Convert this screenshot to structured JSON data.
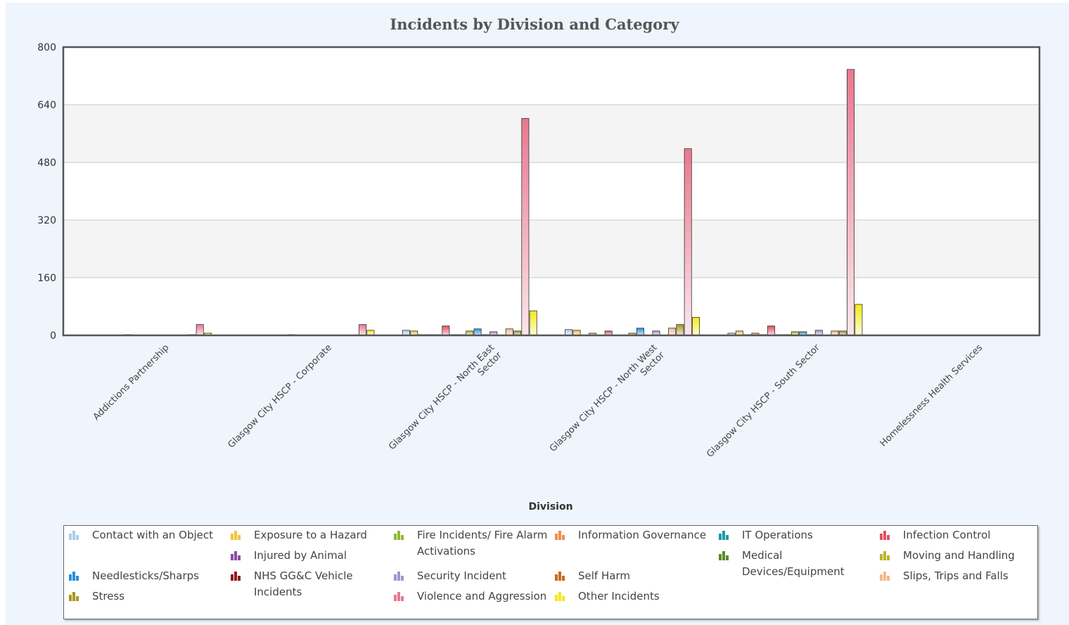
{
  "chart_data": {
    "type": "bar",
    "title": "Incidents by Division and Category",
    "xlabel": "Division",
    "ylabel": "",
    "ylim": [
      0,
      800
    ],
    "yticks": [
      "0",
      "160",
      "320",
      "480",
      "640",
      "800"
    ],
    "grid": true,
    "legend_position": "bottom",
    "categories": [
      "Addictions Partnership",
      "Glasgow City HSCP - Corporate",
      "Glasgow City HSCP - North East Sector",
      "Glasgow City HSCP - North West Sector",
      "Glasgow City HSCP - South Sector",
      "Homelessness Health Services"
    ],
    "series": [
      {
        "name": "Contact with an Object",
        "color": "#aacdee",
        "values": [
          0,
          0,
          14,
          16,
          6,
          0
        ]
      },
      {
        "name": "Exposure to a Hazard",
        "color": "#f2c23a",
        "values": [
          0,
          0,
          12,
          14,
          12,
          0
        ]
      },
      {
        "name": "Fire Incidents/ Fire Alarm Activations",
        "color": "#8db832",
        "values": [
          0,
          0,
          2,
          0,
          2,
          0
        ]
      },
      {
        "name": "Information Governance",
        "color": "#f08c4a",
        "values": [
          0,
          0,
          2,
          6,
          6,
          0
        ]
      },
      {
        "name": "Injured by Animal",
        "color": "#8b4ea2",
        "values": [
          0,
          0,
          2,
          0,
          2,
          0
        ]
      },
      {
        "name": "Infection Control",
        "color": "#e05060",
        "values": [
          0,
          0,
          26,
          12,
          26,
          0
        ]
      },
      {
        "name": "IT Operations",
        "color": "#1a9aa8",
        "values": [
          2,
          2,
          2,
          0,
          2,
          0
        ]
      },
      {
        "name": "Medical Devices/Equipment",
        "color": "#5a8a2a",
        "values": [
          0,
          0,
          2,
          0,
          2,
          0
        ]
      },
      {
        "name": "Moving and Handling",
        "color": "#b8b42a",
        "values": [
          0,
          0,
          12,
          6,
          10,
          0
        ]
      },
      {
        "name": "Needlesticks/Sharps",
        "color": "#2890d8",
        "values": [
          0,
          0,
          18,
          20,
          10,
          0
        ]
      },
      {
        "name": "NHS GG&C Vehicle Incidents",
        "color": "#8a1e1e",
        "values": [
          0,
          0,
          2,
          0,
          2,
          0
        ]
      },
      {
        "name": "Security Incident",
        "color": "#a890c8",
        "values": [
          0,
          0,
          10,
          12,
          14,
          0
        ]
      },
      {
        "name": "Self Harm",
        "color": "#c86a1a",
        "values": [
          0,
          0,
          0,
          0,
          0,
          0
        ]
      },
      {
        "name": "Slips, Trips and Falls",
        "color": "#f2b888",
        "values": [
          0,
          0,
          18,
          20,
          12,
          0
        ]
      },
      {
        "name": "Stress",
        "color": "#a8981e",
        "values": [
          2,
          0,
          12,
          30,
          12,
          0
        ]
      },
      {
        "name": "Violence and Aggression",
        "color": "#e87890",
        "values": [
          30,
          30,
          602,
          518,
          738,
          0
        ]
      },
      {
        "name": "Other Incidents",
        "color": "#f2ea1a",
        "values": [
          6,
          14,
          68,
          50,
          86,
          0
        ]
      }
    ]
  },
  "legend": {
    "items": [
      {
        "label": "Contact with an Object",
        "color": "#aacdee",
        "icon": "bar-chart-icon"
      },
      {
        "label": "Exposure to a Hazard",
        "color": "#f2c23a",
        "icon": "bar-chart-icon"
      },
      {
        "label": "Fire Incidents/ Fire Alarm Activations",
        "color": "#8db832",
        "icon": "bar-chart-icon"
      },
      {
        "label": "Information Governance",
        "color": "#f08c4a",
        "icon": "bar-chart-icon"
      },
      {
        "label": "IT Operations",
        "color": "#1a9aa8",
        "icon": "bar-chart-icon"
      },
      {
        "label": "Infection Control",
        "color": "#e05060",
        "icon": "bar-chart-icon"
      },
      {
        "label": "Injured by Animal",
        "color": "#8b4ea2",
        "icon": "bar-chart-icon"
      },
      {
        "label": "Medical Devices/Equipment",
        "color": "#5a8a2a",
        "icon": "bar-chart-icon"
      },
      {
        "label": "Moving and Handling",
        "color": "#b8b42a",
        "icon": "bar-chart-icon"
      },
      {
        "label": "Needlesticks/Sharps",
        "color": "#2890d8",
        "icon": "bar-chart-icon"
      },
      {
        "label": "NHS GG&C Vehicle Incidents",
        "color": "#8a1e1e",
        "icon": "bar-chart-icon"
      },
      {
        "label": "Security Incident",
        "color": "#a890c8",
        "icon": "bar-chart-icon"
      },
      {
        "label": "Self Harm",
        "color": "#c86a1a",
        "icon": "bar-chart-icon"
      },
      {
        "label": "Slips, Trips and Falls",
        "color": "#f2b888",
        "icon": "bar-chart-icon"
      },
      {
        "label": "Stress",
        "color": "#a8981e",
        "icon": "bar-chart-icon"
      },
      {
        "label": "Violence and Aggression",
        "color": "#e87890",
        "icon": "bar-chart-icon"
      },
      {
        "label": "Other Incidents",
        "color": "#f2ea1a",
        "icon": "bar-chart-icon"
      }
    ]
  }
}
